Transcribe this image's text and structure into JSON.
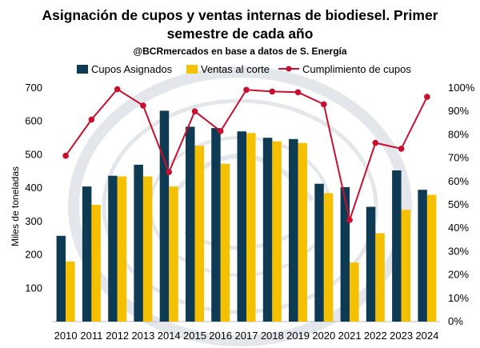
{
  "chart_data": {
    "type": "bar",
    "title_line1": "Asignación de cupos y ventas internas de biodiesel. Primer",
    "title_line2": "semestre de cada año",
    "subtitle": "@BCRmercados en base a datos de S. Energía",
    "ylabel": "Miles de toneladas",
    "ylim": [
      0,
      700
    ],
    "y_ticks": [
      "100",
      "200",
      "300",
      "400",
      "500",
      "600",
      "700"
    ],
    "y2lim": [
      0,
      100
    ],
    "y2_ticks": [
      "0%",
      "10%",
      "20%",
      "30%",
      "40%",
      "50%",
      "60%",
      "70%",
      "80%",
      "90%",
      "100%"
    ],
    "categories": [
      "2010",
      "2011",
      "2012",
      "2013",
      "2014",
      "2015",
      "2016",
      "2017",
      "2018",
      "2019",
      "2020",
      "2021",
      "2022",
      "2023",
      "2024"
    ],
    "series": [
      {
        "name": "Cupos Asignados",
        "kind": "bar",
        "axis": "left",
        "color": "#0e3a54",
        "values": [
          257,
          405,
          437,
          470,
          632,
          584,
          580,
          570,
          551,
          547,
          413,
          403,
          344,
          453,
          395
        ]
      },
      {
        "name": "Ventas al corte",
        "kind": "bar",
        "axis": "left",
        "color": "#f5c000",
        "values": [
          180,
          350,
          435,
          435,
          405,
          527,
          473,
          565,
          540,
          535,
          385,
          177,
          265,
          335,
          380
        ]
      },
      {
        "name": "Cumplimiento de cupos",
        "kind": "line",
        "axis": "right",
        "color": "#c8102e",
        "values": [
          71,
          86.5,
          99.5,
          92.5,
          64,
          90,
          81.5,
          99.2,
          98.5,
          98.2,
          93,
          43.5,
          76.5,
          74,
          96.2
        ]
      }
    ],
    "legend_position": "top",
    "grid": false
  }
}
